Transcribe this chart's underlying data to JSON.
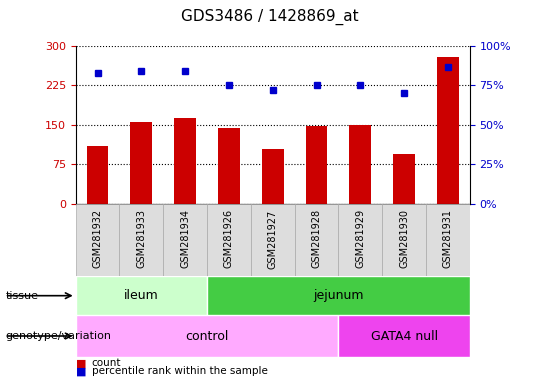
{
  "title": "GDS3486 / 1428869_at",
  "samples": [
    "GSM281932",
    "GSM281933",
    "GSM281934",
    "GSM281926",
    "GSM281927",
    "GSM281928",
    "GSM281929",
    "GSM281930",
    "GSM281931"
  ],
  "counts": [
    110,
    155,
    163,
    143,
    103,
    148,
    150,
    95,
    280
  ],
  "percentiles": [
    83,
    84,
    84,
    75,
    72,
    75,
    75,
    70,
    87
  ],
  "bar_color": "#cc0000",
  "dot_color": "#0000cc",
  "ylim_left": [
    0,
    300
  ],
  "ylim_right": [
    0,
    100
  ],
  "yticks_left": [
    0,
    75,
    150,
    225,
    300
  ],
  "yticks_right": [
    0,
    25,
    50,
    75,
    100
  ],
  "tissue_groups": [
    {
      "label": "ileum",
      "start": 0,
      "end": 3,
      "color": "#ccffcc"
    },
    {
      "label": "jejunum",
      "start": 3,
      "end": 9,
      "color": "#44cc44"
    }
  ],
  "genotype_groups": [
    {
      "label": "control",
      "start": 0,
      "end": 6,
      "color": "#ffaaff"
    },
    {
      "label": "GATA4 null",
      "start": 6,
      "end": 9,
      "color": "#ee44ee"
    }
  ],
  "tissue_label": "tissue",
  "genotype_label": "genotype/variation",
  "legend_count_label": "count",
  "legend_percentile_label": "percentile rank within the sample",
  "tick_label_color_left": "#cc0000",
  "tick_label_color_right": "#0000cc",
  "sample_box_color": "#dddddd",
  "sample_box_edge_color": "#aaaaaa"
}
